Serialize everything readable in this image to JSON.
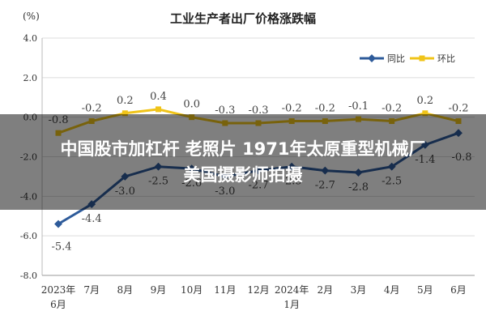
{
  "chart_data": {
    "type": "line",
    "title": "工业生产者出厂价格涨跌幅",
    "ylabel": "(%)",
    "ylim": [
      -8.0,
      4.0
    ],
    "yticks": [
      "4.0",
      "2.0",
      "0.0",
      "-2.0",
      "-4.0",
      "-6.0",
      "-8.0"
    ],
    "yticks_values": [
      4,
      2,
      0,
      -2,
      -4,
      -6,
      -8
    ],
    "categories": [
      [
        "2023年",
        "6月"
      ],
      [
        "7月"
      ],
      [
        "8月"
      ],
      [
        "9月"
      ],
      [
        "10月"
      ],
      [
        "11月"
      ],
      [
        "12月"
      ],
      [
        "2024年",
        "1月"
      ],
      [
        "2月"
      ],
      [
        "3月"
      ],
      [
        "4月"
      ],
      [
        "5月"
      ],
      [
        "6月"
      ]
    ],
    "grid": true,
    "legend_position": "top-right",
    "series": [
      {
        "name": "同比",
        "color": "#2e5b9a",
        "values": [
          -5.4,
          -4.4,
          -3.0,
          -2.5,
          -2.6,
          -3.0,
          -2.7,
          -2.5,
          -2.7,
          -2.8,
          -2.5,
          -1.4,
          -0.8
        ],
        "labels": [
          "-5.4",
          "-4.4",
          "-3.0",
          "-2.5",
          "-2.6",
          "-3.0",
          "-2.7",
          "-2.5",
          "-2.7",
          "-2.8",
          "-2.5",
          "-1.4",
          "-0.8"
        ]
      },
      {
        "name": "环比",
        "color": "#f0c419",
        "values": [
          -0.8,
          -0.2,
          0.2,
          0.4,
          0.0,
          -0.3,
          -0.3,
          -0.2,
          -0.2,
          -0.1,
          -0.2,
          0.2,
          -0.2
        ],
        "labels": [
          "-0.8",
          "-0.2",
          "0.2",
          "0.4",
          "0.0",
          "-0.3",
          "-0.3",
          "-0.2",
          "-0.2",
          "-0.1",
          "-0.2",
          "0.2",
          "-0.2"
        ]
      }
    ]
  },
  "overlay": {
    "line1": "中国股市加杠杆 老照片 1971年太原重型机械厂",
    "line2": "美国摄影师拍摄"
  }
}
